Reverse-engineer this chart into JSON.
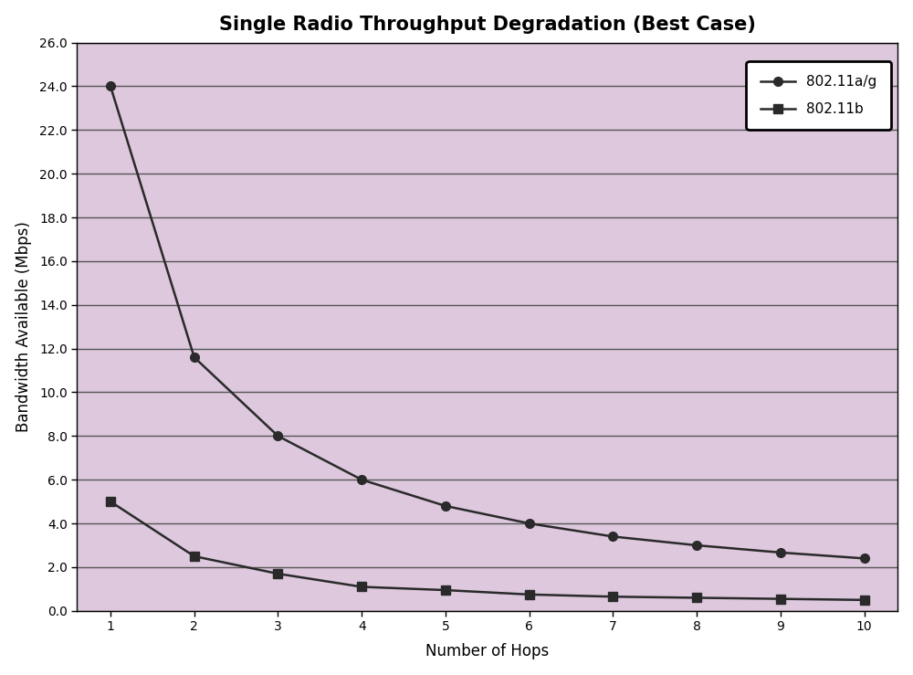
{
  "title": "Single Radio Throughput Degradation (Best Case)",
  "xlabel": "Number of Hops",
  "ylabel": "Bandwidth Available (Mbps)",
  "hops": [
    1,
    2,
    3,
    4,
    5,
    6,
    7,
    8,
    9,
    10
  ],
  "ag_values": [
    24.0,
    11.6,
    8.0,
    6.0,
    4.8,
    4.0,
    3.4,
    3.0,
    2.67,
    2.4
  ],
  "b_values": [
    5.0,
    2.5,
    1.7,
    1.1,
    0.95,
    0.75,
    0.65,
    0.6,
    0.55,
    0.5
  ],
  "line_color": "#2a2a2a",
  "fig_bg_color": "#ffffff",
  "plot_bg_color": "#ddc8dd",
  "grid_color": "#555555",
  "ylim": [
    0.0,
    26.0
  ],
  "xlim_lo": 0.6,
  "xlim_hi": 10.4,
  "yticks": [
    0.0,
    2.0,
    4.0,
    6.0,
    8.0,
    10.0,
    12.0,
    14.0,
    16.0,
    18.0,
    20.0,
    22.0,
    24.0,
    26.0
  ],
  "xticks": [
    1,
    2,
    3,
    4,
    5,
    6,
    7,
    8,
    9,
    10
  ],
  "legend_labels": [
    "802.11a/g",
    "802.11b"
  ],
  "title_fontsize": 15,
  "label_fontsize": 12,
  "tick_fontsize": 10,
  "legend_fontsize": 11
}
